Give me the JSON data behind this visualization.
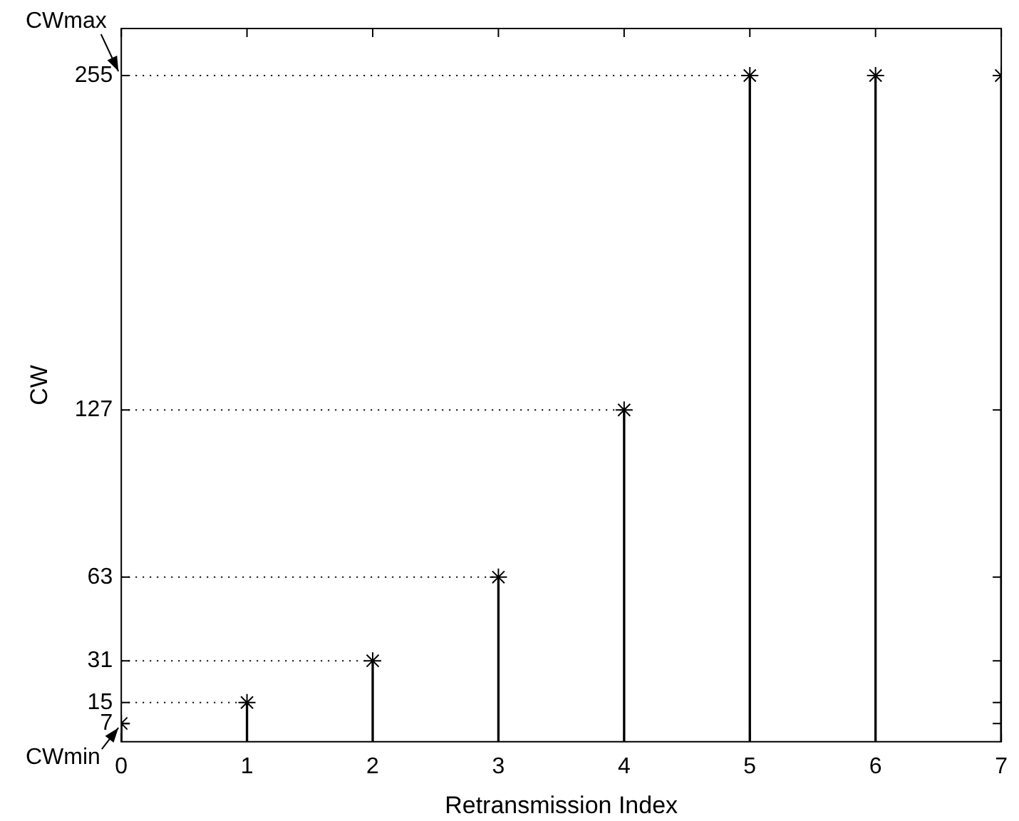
{
  "chart_data": {
    "type": "lollipop",
    "xlabel": "Retransmission Index",
    "ylabel": "CW",
    "x": [
      0,
      1,
      2,
      3,
      4,
      5,
      6,
      7
    ],
    "values": [
      7,
      15,
      31,
      63,
      127,
      255,
      255,
      255
    ],
    "color": "#000000",
    "marker": "cross",
    "xlim": [
      0,
      7
    ],
    "xticks": [
      0,
      1,
      2,
      3,
      4,
      5,
      6,
      7
    ],
    "ylim": [
      0,
      273
    ],
    "yticks": [
      7,
      15,
      31,
      63,
      127,
      255
    ],
    "ref_lines": [
      {
        "axis": "y",
        "value": 15,
        "line_style": "dotted"
      },
      {
        "axis": "y",
        "value": 31,
        "line_style": "dotted"
      },
      {
        "axis": "y",
        "value": 63,
        "line_style": "dotted"
      },
      {
        "axis": "y",
        "value": 127,
        "line_style": "dotted"
      },
      {
        "axis": "y",
        "value": 255,
        "line_style": "dotted"
      }
    ],
    "annotations": [
      {
        "text": "CWmax",
        "x": 0,
        "y": 255
      },
      {
        "text": "CWmin",
        "x": 0,
        "y": 7
      }
    ],
    "grid": false,
    "legend": false
  }
}
